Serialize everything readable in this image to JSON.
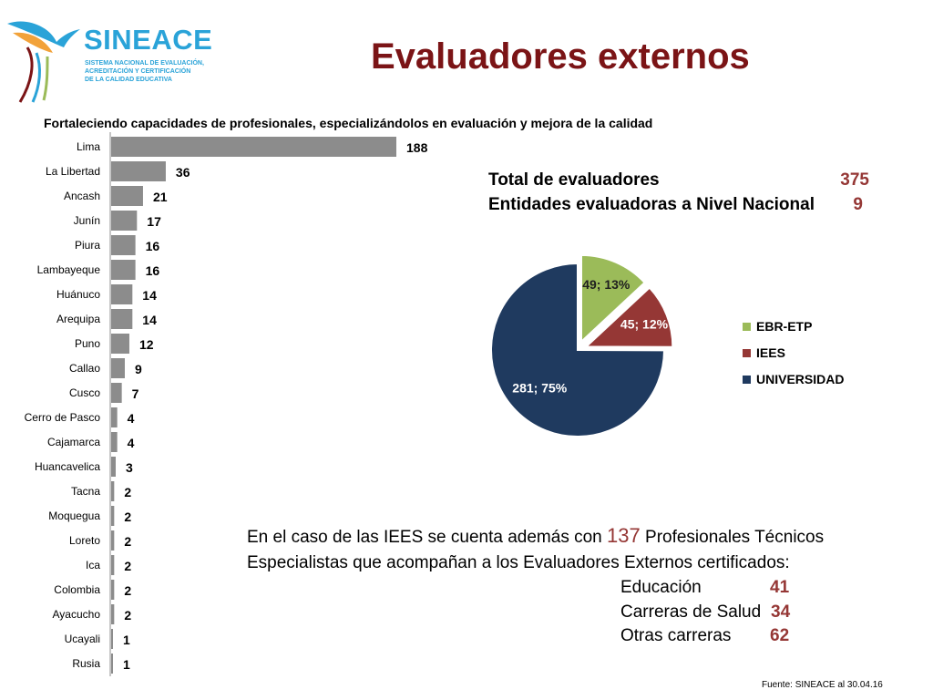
{
  "logo": {
    "name": "SINEACE",
    "subtitle_lines": [
      "SISTEMA NACIONAL DE EVALUACIÓN,",
      "ACREDITACIÓN Y CERTIFICACIÓN",
      "DE LA CALIDAD EDUCATIVA"
    ]
  },
  "title": "Evaluadores externos",
  "subtitle": "Fortaleciendo capacidades de profesionales, especializándolos en evaluación y mejora de la calidad",
  "totals": {
    "total_label": "Total  de evaluadores",
    "total_value": "375",
    "entities_label": "Entidades evaluadoras a Nivel Nacional",
    "entities_value": "9"
  },
  "note": {
    "line1_pre": "En el caso de las IEES se cuenta además con",
    "highlight": "137",
    "line1_post": "Profesionales Técnicos",
    "line2": "Especialistas que acompañan a los Evaluadores Externos certificados:"
  },
  "detail": [
    {
      "label": "Educación",
      "value": "41"
    },
    {
      "label": "Carreras de Salud",
      "value": "34"
    },
    {
      "label": "Otras carreras",
      "value": "62"
    }
  ],
  "source": "Fuente: SINEACE al  30.04.16",
  "colors": {
    "title": "#7b1416",
    "bar": "#8c8c8c",
    "highlight": "#953735",
    "ebr": "#9bbb59",
    "iees": "#953735",
    "universidad": "#1f3a5f"
  },
  "chart_data": [
    {
      "type": "bar",
      "orientation": "horizontal",
      "title": "Fortaleciendo capacidades de profesionales, especializándolos en evaluación y mejora de la calidad",
      "categories": [
        "Lima",
        "La Libertad",
        "Ancash",
        "Junín",
        "Piura",
        "Lambayeque",
        "Huánuco",
        "Arequipa",
        "Puno",
        "Callao",
        "Cusco",
        "Cerro de Pasco",
        "Cajamarca",
        "Huancavelica",
        "Tacna",
        "Moquegua",
        "Loreto",
        "Ica",
        "Colombia",
        "Ayacucho",
        "Ucayali",
        "Rusia"
      ],
      "values": [
        188,
        36,
        21,
        17,
        16,
        16,
        14,
        14,
        12,
        9,
        7,
        4,
        4,
        3,
        2,
        2,
        2,
        2,
        2,
        2,
        1,
        1
      ],
      "xlim": [
        0,
        188
      ]
    },
    {
      "type": "pie",
      "labels": [
        "EBR-ETP",
        "IEES",
        "UNIVERSIDAD"
      ],
      "values": [
        49,
        45,
        281
      ],
      "percents": [
        "13%",
        "12%",
        "75%"
      ],
      "colors": [
        "#9bbb59",
        "#953735",
        "#1f3a5f"
      ],
      "exploded": [
        "EBR-ETP",
        "IEES"
      ],
      "legend": "right"
    }
  ]
}
